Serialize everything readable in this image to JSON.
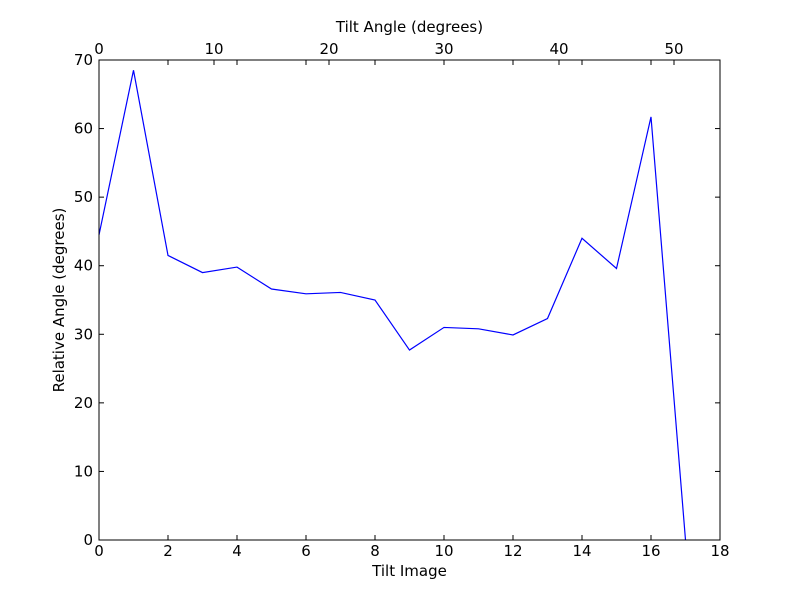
{
  "chart_data": {
    "type": "line",
    "title": "",
    "xlabel": "Tilt Image",
    "ylabel": "Relative Angle (degrees)",
    "x2label": "Tilt Angle (degrees)",
    "xlim": [
      0,
      18
    ],
    "ylim": [
      0,
      70
    ],
    "x2lim": [
      0,
      54
    ],
    "xticks": [
      0,
      2,
      4,
      6,
      8,
      10,
      12,
      14,
      16,
      18
    ],
    "yticks": [
      0,
      10,
      20,
      30,
      40,
      50,
      60,
      70
    ],
    "x2ticks": [
      0,
      10,
      20,
      30,
      40,
      50
    ],
    "grid": false,
    "legend": false,
    "series": [
      {
        "color": "#0000ff",
        "x": [
          0,
          1,
          2,
          3,
          4,
          5,
          6,
          7,
          8,
          9,
          10,
          11,
          12,
          13,
          14,
          15,
          16,
          17
        ],
        "y": [
          44.5,
          68.5,
          41.5,
          39.0,
          39.8,
          36.6,
          35.9,
          36.1,
          35.0,
          27.7,
          31.0,
          30.8,
          29.9,
          32.3,
          44.0,
          39.6,
          61.7,
          0
        ]
      }
    ]
  }
}
